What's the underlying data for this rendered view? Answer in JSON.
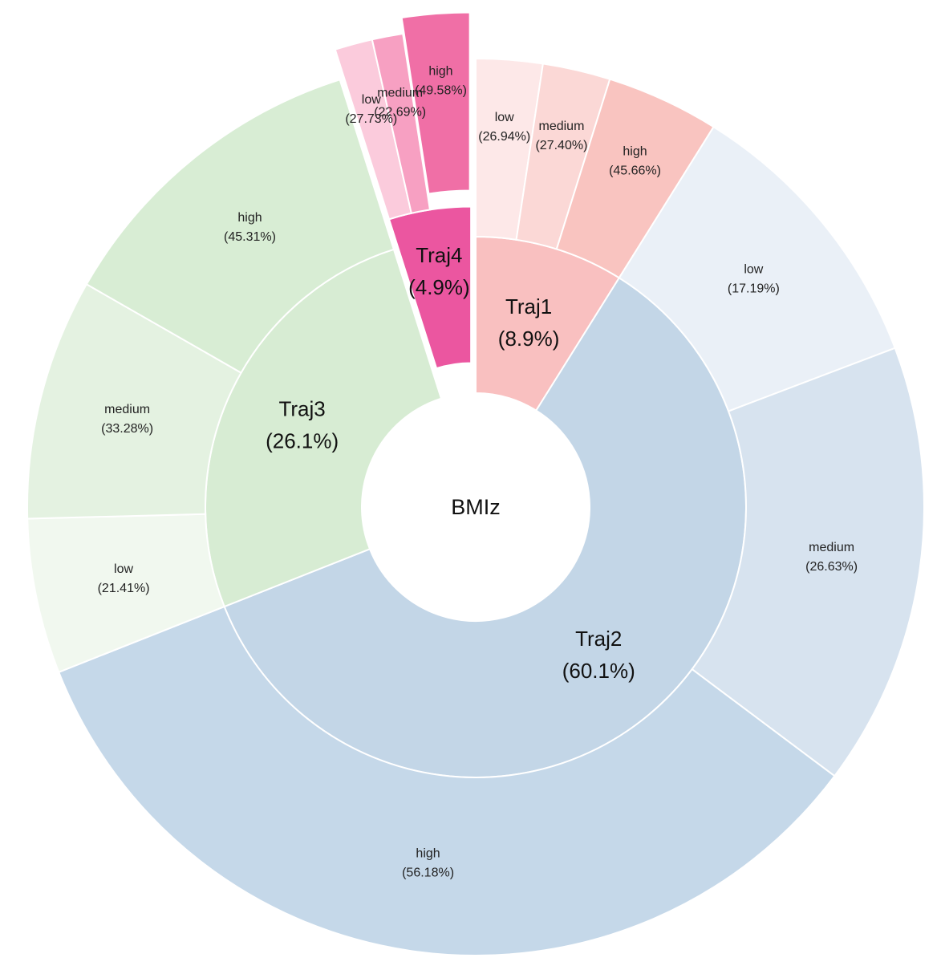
{
  "chart_data": {
    "type": "sunburst",
    "title": "",
    "center_label": "BMIz",
    "groups": [
      {
        "name": "Traj1",
        "share_label": "(8.9%)",
        "share": 8.9,
        "color": "#f9c0c0",
        "exploded": false,
        "children": [
          {
            "name": "low",
            "pct_label": "(26.94%)",
            "pct": 26.94,
            "color": "#fde8e8"
          },
          {
            "name": "medium",
            "pct_label": "(27.40%)",
            "pct": 27.4,
            "color": "#fbd8d6"
          },
          {
            "name": "high",
            "pct_label": "(45.66%)",
            "pct": 45.66,
            "color": "#f9c4c0"
          }
        ]
      },
      {
        "name": "Traj2",
        "share_label": "(60.1%)",
        "share": 60.1,
        "color": "#c3d6e7",
        "exploded": false,
        "children": [
          {
            "name": "low",
            "pct_label": "(17.19%)",
            "pct": 17.19,
            "color": "#eaf0f7"
          },
          {
            "name": "medium",
            "pct_label": "(26.63%)",
            "pct": 26.63,
            "color": "#d7e3ef"
          },
          {
            "name": "high",
            "pct_label": "(56.18%)",
            "pct": 56.18,
            "color": "#c5d8e9"
          }
        ]
      },
      {
        "name": "Traj3",
        "share_label": "(26.1%)",
        "share": 26.1,
        "color": "#d7ecd3",
        "exploded": false,
        "children": [
          {
            "name": "low",
            "pct_label": "(21.41%)",
            "pct": 21.41,
            "color": "#f1f8ef"
          },
          {
            "name": "medium",
            "pct_label": "(33.28%)",
            "pct": 33.28,
            "color": "#e4f2e1"
          },
          {
            "name": "high",
            "pct_label": "(45.31%)",
            "pct": 45.31,
            "color": "#d8edd4"
          }
        ]
      },
      {
        "name": "Traj4",
        "share_label": "(4.9%)",
        "share": 4.9,
        "color": "#eb56a0",
        "exploded": true,
        "children": [
          {
            "name": "low",
            "pct_label": "(27.73%)",
            "pct": 27.73,
            "color": "#fbcbdc"
          },
          {
            "name": "medium",
            "pct_label": "(22.69%)",
            "pct": 22.69,
            "color": "#f7a0c2"
          },
          {
            "name": "high",
            "pct_label": "(49.58%)",
            "pct": 49.58,
            "color": "#f06fa6",
            "exploded": true
          }
        ]
      }
    ]
  }
}
